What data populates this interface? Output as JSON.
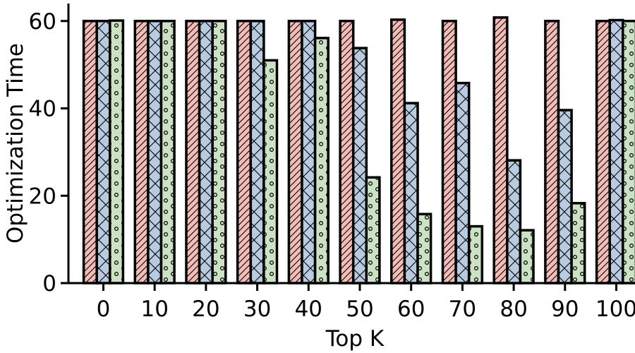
{
  "chart_data": {
    "type": "bar",
    "xlabel": "Top K",
    "ylabel": "Optimization Time",
    "categories": [
      "0",
      "10",
      "20",
      "30",
      "40",
      "50",
      "60",
      "70",
      "80",
      "90",
      "100"
    ],
    "ylim": [
      0,
      64
    ],
    "yticks": [
      0,
      20,
      40,
      60
    ],
    "grid": false,
    "legend": "none",
    "series": [
      {
        "pattern": "diagonal-hatch",
        "color": "#f4bcb6",
        "values": [
          60,
          60,
          60,
          60,
          60,
          60,
          60.3,
          60,
          60.8,
          60,
          60
        ]
      },
      {
        "pattern": "cross-hatch",
        "color": "#b9cbe0",
        "values": [
          60,
          60,
          60,
          60,
          60,
          53.8,
          41.2,
          45.8,
          28.1,
          39.6,
          60.2
        ]
      },
      {
        "pattern": "circles",
        "color": "#cce2c5",
        "values": [
          60.1,
          60,
          60,
          51,
          56.1,
          24.2,
          15.8,
          13,
          12.1,
          18.3,
          60
        ]
      }
    ]
  }
}
